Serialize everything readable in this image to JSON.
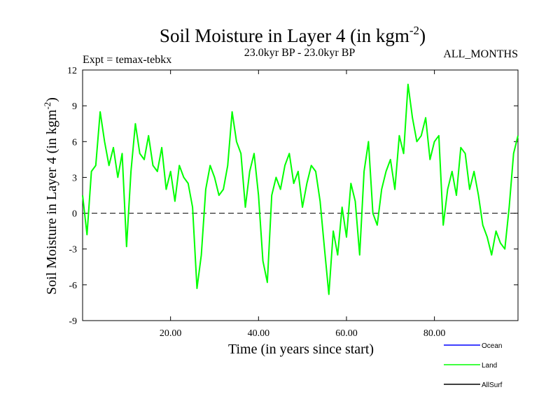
{
  "title": {
    "main": "Soil Moisture in Layer 4 (in kgm",
    "sup": "-2",
    "close": ")"
  },
  "subtitle": {
    "expt": "Expt = temax-tebkx",
    "period": "23.0kyr BP - 23.0kyr BP",
    "months": "ALL_MONTHS"
  },
  "colors": {
    "ocean": "#0000ff",
    "land": "#00ff00",
    "allsurf": "#000000",
    "axis": "#000000"
  },
  "chart_data": {
    "type": "line",
    "title": "Soil Moisture in Layer 4 (in kgm-2)",
    "xlabel": "Time (in years since start)",
    "ylabel": {
      "main": "Soil Moisture in Layer 4 (in kgm",
      "sup": "-2",
      "close": ")"
    },
    "xlim": [
      0,
      99
    ],
    "ylim": [
      -9,
      12
    ],
    "x_ticks": [
      20,
      40,
      60,
      80
    ],
    "x_tick_labels": [
      "20.00",
      "40.00",
      "60.00",
      "80.00"
    ],
    "y_ticks": [
      -9,
      -6,
      -3,
      0,
      3,
      6,
      9,
      12
    ],
    "y_tick_labels": [
      "-9",
      "-6",
      "-3",
      "0",
      "3",
      "6",
      "9",
      "12"
    ],
    "zero_line": 0,
    "legend": [
      {
        "name": "Ocean",
        "color": "#0000ff"
      },
      {
        "name": "Land",
        "color": "#00ff00"
      },
      {
        "name": "AllSurf",
        "color": "#000000"
      }
    ],
    "series": [
      {
        "name": "Land",
        "color": "#00ff00",
        "x": [
          0,
          1,
          2,
          3,
          4,
          5,
          6,
          7,
          8,
          9,
          10,
          11,
          12,
          13,
          14,
          15,
          16,
          17,
          18,
          19,
          20,
          21,
          22,
          23,
          24,
          25,
          26,
          27,
          28,
          29,
          30,
          31,
          32,
          33,
          34,
          35,
          36,
          37,
          38,
          39,
          40,
          41,
          42,
          43,
          44,
          45,
          46,
          47,
          48,
          49,
          50,
          51,
          52,
          53,
          54,
          55,
          56,
          57,
          58,
          59,
          60,
          61,
          62,
          63,
          64,
          65,
          66,
          67,
          68,
          69,
          70,
          71,
          72,
          73,
          74,
          75,
          76,
          77,
          78,
          79,
          80,
          81,
          82,
          83,
          84,
          85,
          86,
          87,
          88,
          89,
          90,
          91,
          92,
          93,
          94,
          95,
          96,
          97,
          98,
          99
        ],
        "values": [
          1.5,
          -1.8,
          3.5,
          4.0,
          8.5,
          6.0,
          4.0,
          5.5,
          3.0,
          5.0,
          -2.8,
          3.5,
          7.5,
          5.0,
          4.5,
          6.5,
          4.0,
          3.5,
          5.5,
          2.0,
          3.5,
          1.0,
          4.0,
          3.0,
          2.5,
          0.5,
          -6.3,
          -3.5,
          2.0,
          4.0,
          3.0,
          1.5,
          2.0,
          4.0,
          8.5,
          6.0,
          5.0,
          0.5,
          3.5,
          5.0,
          1.5,
          -4.0,
          -5.8,
          1.5,
          3.0,
          2.0,
          4.0,
          5.0,
          2.5,
          3.5,
          0.5,
          2.5,
          4.0,
          3.5,
          1.0,
          -3.0,
          -6.8,
          -1.5,
          -3.5,
          0.5,
          -2.0,
          2.5,
          1.0,
          -3.5,
          3.5,
          6.0,
          0.0,
          -1.0,
          2.0,
          3.5,
          4.5,
          2.0,
          6.5,
          5.0,
          10.8,
          8.0,
          6.0,
          6.5,
          8.0,
          4.5,
          6.0,
          6.5,
          -1.0,
          2.0,
          3.5,
          1.5,
          5.5,
          5.0,
          2.0,
          3.5,
          1.5,
          -1.0,
          -2.0,
          -3.5,
          -1.5,
          -2.5,
          -3.0,
          0.5,
          5.0,
          6.5
        ]
      }
    ]
  }
}
